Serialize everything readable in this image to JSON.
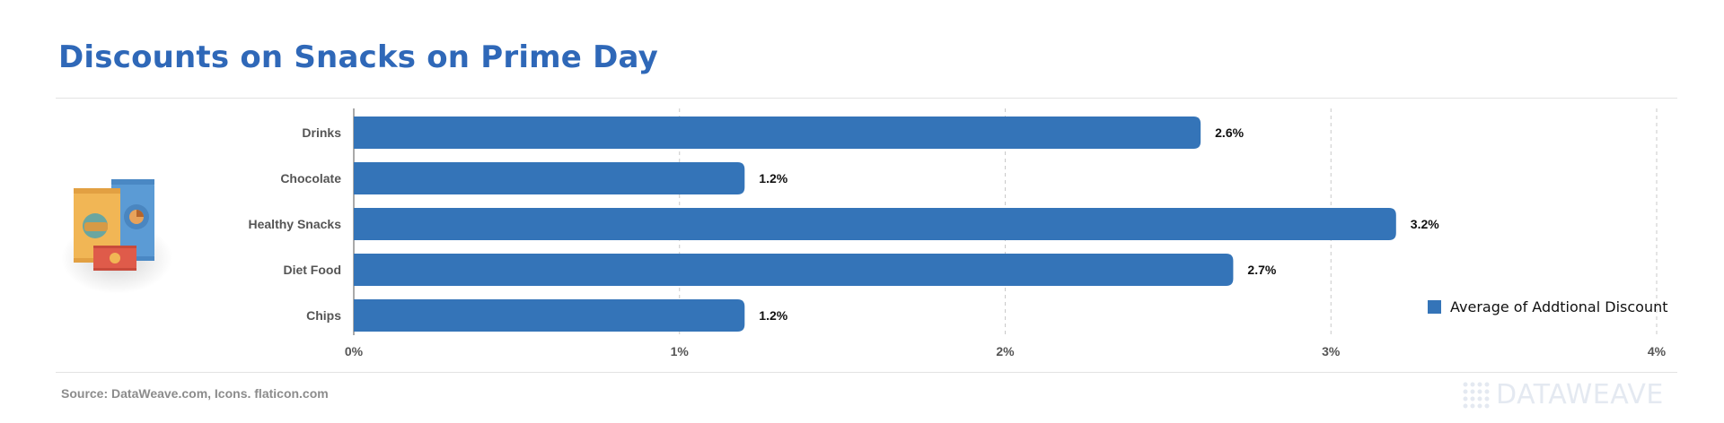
{
  "title": "Discounts on Snacks on Prime Day",
  "source": "Source: DataWeave.com, Icons. flaticon.com",
  "brand": "DATAWEAVE",
  "illustration_icon": "snack-packets-icon",
  "colors": {
    "bar": "#3474b8",
    "title": "#2f68b8"
  },
  "chart_data": {
    "type": "bar",
    "orientation": "horizontal",
    "categories": [
      "Drinks",
      "Chocolate",
      "Healthy Snacks",
      "Diet Food",
      "Chips"
    ],
    "series": [
      {
        "name": "Average of Addtional Discount",
        "values": [
          2.6,
          1.2,
          3.2,
          2.7,
          1.2
        ],
        "labels": [
          "2.6%",
          "1.2%",
          "3.2%",
          "2.7%",
          "1.2%"
        ]
      }
    ],
    "xlim": [
      0,
      4
    ],
    "xticks": [
      0,
      1,
      2,
      3,
      4
    ],
    "xtick_labels": [
      "0%",
      "1%",
      "2%",
      "3%",
      "4%"
    ],
    "grid": "vertical-dashed",
    "legend": "bottom-right"
  }
}
